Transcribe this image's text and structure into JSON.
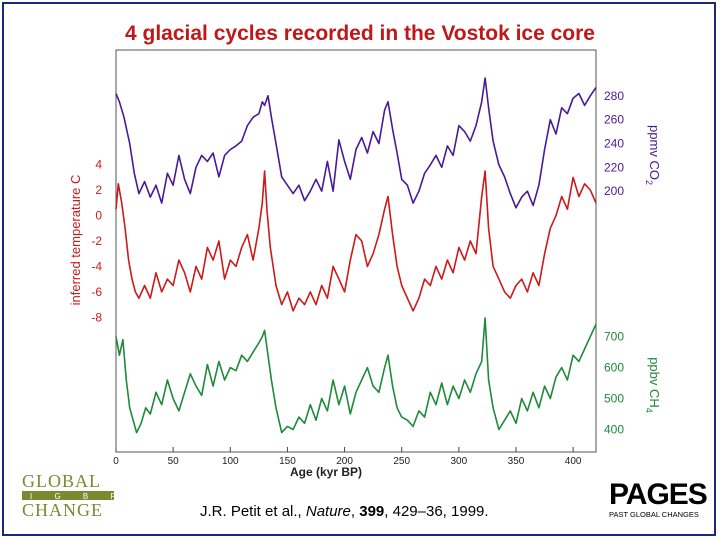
{
  "title": "4 glacial cycles recorded in the Vostok ice core",
  "chart_data": {
    "type": "line",
    "title": "4 glacial cycles recorded in the Vostok ice core",
    "xlabel": "Age (kyr BP)",
    "xlim": [
      0,
      420
    ],
    "xticks": [
      "0",
      "50",
      "100",
      "150",
      "200",
      "250",
      "300",
      "350",
      "400"
    ],
    "xtick_values": [
      0,
      50,
      100,
      150,
      200,
      250,
      300,
      350,
      400
    ],
    "series": [
      {
        "name": "CO2",
        "color": "#4a1a96",
        "axis_label": "ppmv CO",
        "axis_label_sub": "2",
        "ylim": [
          180,
          300
        ],
        "yticks": [
          "280",
          "260",
          "240",
          "220",
          "200"
        ],
        "ytick_values": [
          280,
          260,
          240,
          220,
          200
        ],
        "x": [
          0,
          3,
          7,
          12,
          16,
          20,
          25,
          30,
          35,
          40,
          45,
          50,
          55,
          60,
          65,
          70,
          75,
          80,
          85,
          90,
          95,
          100,
          105,
          110,
          115,
          120,
          125,
          128,
          130,
          133,
          136,
          140,
          145,
          150,
          155,
          160,
          165,
          170,
          175,
          180,
          185,
          190,
          195,
          200,
          205,
          210,
          215,
          220,
          225,
          230,
          235,
          238,
          242,
          246,
          250,
          255,
          260,
          265,
          270,
          275,
          280,
          285,
          290,
          295,
          300,
          305,
          310,
          315,
          320,
          323,
          326,
          330,
          335,
          340,
          345,
          350,
          355,
          360,
          365,
          370,
          375,
          380,
          385,
          390,
          395,
          400,
          405,
          410,
          415,
          420
        ],
        "values": [
          282,
          275,
          262,
          240,
          215,
          198,
          208,
          195,
          205,
          190,
          215,
          205,
          230,
          210,
          198,
          220,
          230,
          225,
          232,
          212,
          230,
          235,
          238,
          242,
          255,
          262,
          265,
          275,
          272,
          280,
          262,
          240,
          212,
          205,
          198,
          205,
          192,
          200,
          210,
          200,
          225,
          200,
          243,
          225,
          210,
          235,
          245,
          232,
          250,
          240,
          268,
          275,
          252,
          232,
          210,
          205,
          190,
          200,
          215,
          222,
          230,
          220,
          238,
          230,
          255,
          250,
          242,
          255,
          275,
          295,
          270,
          242,
          222,
          212,
          198,
          186,
          195,
          200,
          188,
          205,
          235,
          260,
          248,
          270,
          265,
          278,
          282,
          272,
          280,
          287
        ]
      },
      {
        "name": "Temperature",
        "color": "#cc1a1a",
        "axis_label": "inferred temperature  C",
        "ylim": [
          -9,
          5
        ],
        "yticks": [
          "4",
          "2",
          "0",
          "-2",
          "-4",
          "-6",
          "-8"
        ],
        "ytick_values": [
          4,
          2,
          0,
          -2,
          -4,
          -6,
          -8
        ],
        "x": [
          0,
          2,
          5,
          8,
          11,
          14,
          17,
          20,
          25,
          30,
          35,
          40,
          45,
          50,
          55,
          60,
          65,
          70,
          75,
          80,
          85,
          90,
          95,
          100,
          105,
          110,
          115,
          120,
          125,
          128,
          130,
          132,
          135,
          140,
          145,
          150,
          155,
          160,
          165,
          170,
          175,
          180,
          185,
          190,
          195,
          200,
          205,
          210,
          215,
          220,
          225,
          230,
          235,
          238,
          242,
          246,
          250,
          255,
          260,
          265,
          270,
          275,
          280,
          285,
          290,
          295,
          300,
          305,
          310,
          315,
          320,
          323,
          326,
          330,
          335,
          340,
          345,
          350,
          355,
          360,
          365,
          370,
          375,
          380,
          385,
          390,
          395,
          400,
          405,
          410,
          415,
          420
        ],
        "values": [
          0.5,
          2.5,
          1.0,
          -1.0,
          -3.5,
          -5.0,
          -6.0,
          -6.5,
          -5.5,
          -6.5,
          -4.5,
          -6.0,
          -5.0,
          -5.5,
          -3.5,
          -4.5,
          -6.0,
          -4.0,
          -5.0,
          -2.5,
          -3.5,
          -2.0,
          -5.0,
          -3.5,
          -4.0,
          -2.5,
          -1.5,
          -3.5,
          -1.0,
          1.0,
          3.5,
          0.5,
          -2.5,
          -5.5,
          -7.0,
          -6.0,
          -7.5,
          -6.5,
          -7.0,
          -6.0,
          -7.0,
          -5.5,
          -6.5,
          -4.0,
          -5.0,
          -6.0,
          -3.5,
          -1.5,
          -2.0,
          -4.0,
          -3.0,
          -1.5,
          0.5,
          1.5,
          -1.5,
          -4.0,
          -5.5,
          -6.5,
          -7.5,
          -6.5,
          -5.0,
          -5.5,
          -4.0,
          -5.0,
          -3.5,
          -4.5,
          -2.5,
          -3.5,
          -2.0,
          -3.0,
          1.5,
          3.5,
          -1.0,
          -4.0,
          -5.0,
          -6.0,
          -6.5,
          -5.5,
          -5.0,
          -6.0,
          -4.5,
          -5.5,
          -3.0,
          -1.0,
          0.0,
          1.5,
          0.5,
          3.0,
          1.5,
          2.5,
          2.0,
          1.0
        ]
      },
      {
        "name": "CH4",
        "color": "#1e8a3a",
        "axis_label": "ppbv CH",
        "axis_label_sub": "4",
        "ylim": [
          350,
          760
        ],
        "yticks": [
          "700",
          "600",
          "500",
          "400"
        ],
        "ytick_values": [
          700,
          600,
          500,
          400
        ],
        "x": [
          0,
          3,
          6,
          9,
          12,
          15,
          18,
          22,
          26,
          30,
          35,
          40,
          45,
          50,
          55,
          60,
          65,
          70,
          75,
          80,
          85,
          90,
          95,
          100,
          105,
          110,
          115,
          120,
          125,
          128,
          130,
          133,
          136,
          140,
          145,
          150,
          155,
          160,
          165,
          170,
          175,
          180,
          185,
          190,
          195,
          200,
          205,
          210,
          215,
          220,
          225,
          230,
          235,
          238,
          242,
          246,
          250,
          255,
          260,
          265,
          270,
          275,
          280,
          285,
          290,
          295,
          300,
          305,
          310,
          315,
          320,
          323,
          326,
          330,
          335,
          340,
          345,
          350,
          355,
          360,
          365,
          370,
          375,
          380,
          385,
          390,
          395,
          400,
          405,
          410,
          415,
          420
        ],
        "values": [
          700,
          640,
          690,
          560,
          470,
          430,
          390,
          420,
          470,
          450,
          520,
          480,
          560,
          500,
          460,
          520,
          580,
          540,
          510,
          610,
          540,
          620,
          560,
          600,
          590,
          640,
          620,
          650,
          680,
          700,
          720,
          640,
          560,
          470,
          390,
          410,
          400,
          440,
          420,
          480,
          430,
          500,
          460,
          560,
          480,
          540,
          450,
          520,
          560,
          600,
          540,
          520,
          600,
          640,
          540,
          470,
          440,
          430,
          410,
          460,
          440,
          520,
          480,
          550,
          480,
          540,
          500,
          560,
          520,
          580,
          620,
          760,
          560,
          470,
          400,
          430,
          460,
          420,
          500,
          460,
          520,
          470,
          540,
          500,
          570,
          600,
          560,
          640,
          620,
          660,
          700,
          740
        ]
      }
    ]
  },
  "citation": {
    "authors": "J.R. Petit et al., ",
    "journal": "Nature",
    "sep1": ", ",
    "volume": "399",
    "rest": ", 429–36, 1999."
  },
  "logos": {
    "left_line1": "GLOBAL",
    "left_line2": "I G B P",
    "left_line3": "CHANGE",
    "right_main": "PAGES",
    "right_sub": "PAST GLOBAL CHANGES"
  }
}
